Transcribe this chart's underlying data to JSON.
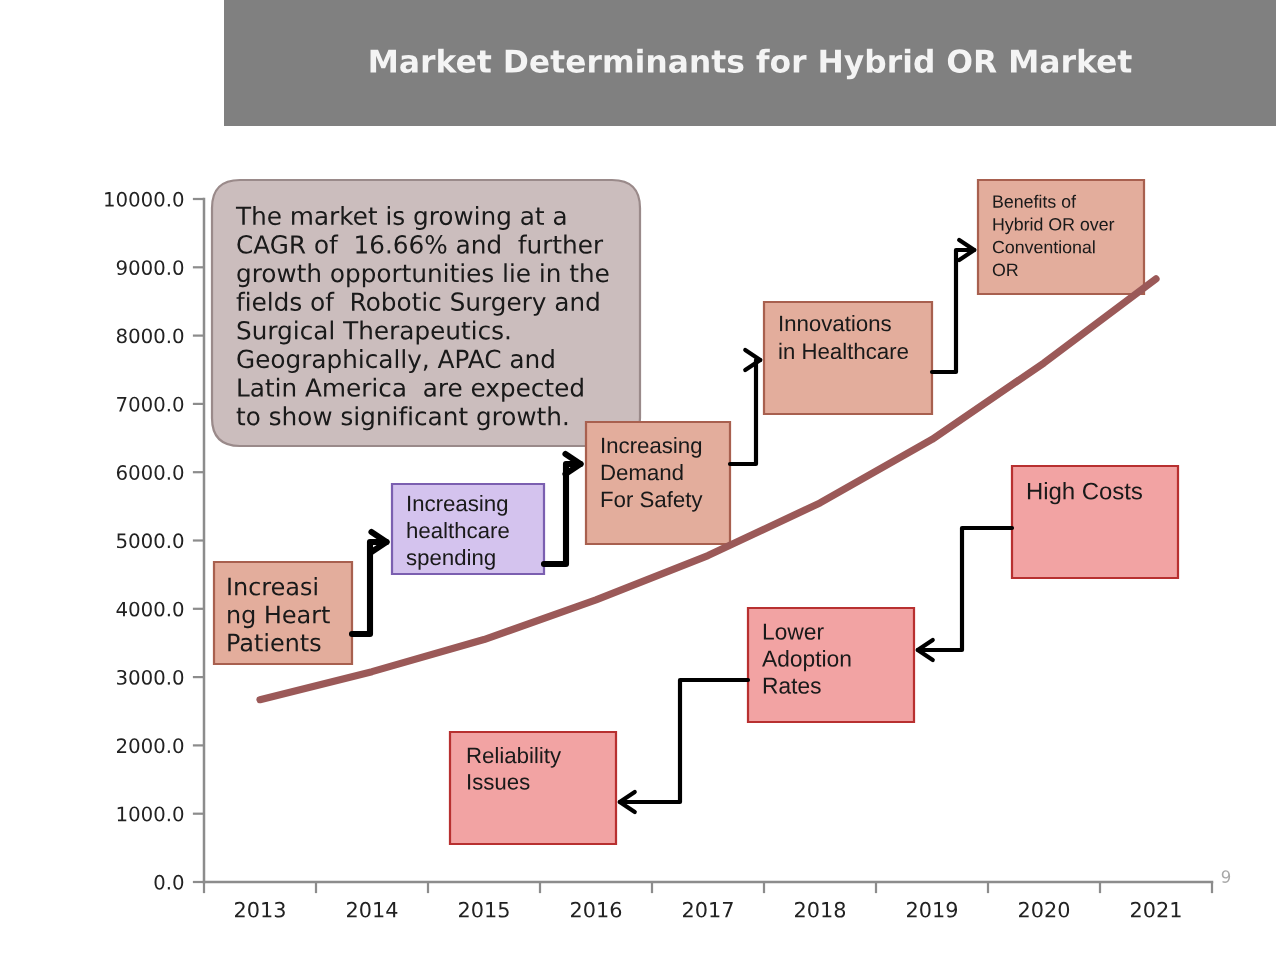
{
  "chart_data": {
    "type": "line",
    "title": "Market Determinants for Hybrid OR Market",
    "categories": [
      "2013",
      "2014",
      "2015",
      "2016",
      "2017",
      "2018",
      "2019",
      "2020",
      "2021"
    ],
    "values": [
      2670,
      3080,
      3550,
      4130,
      4780,
      5550,
      6480,
      7600,
      8830
    ],
    "color": "#9b5958",
    "line_style": "solid",
    "ylim": [
      0,
      10000
    ],
    "yticks": [
      {
        "value": 0,
        "label": "0.0"
      },
      {
        "value": 1000,
        "label": "1000.0"
      },
      {
        "value": 2000,
        "label": "2000.0"
      },
      {
        "value": 3000,
        "label": "3000.0"
      },
      {
        "value": 4000,
        "label": "4000.0"
      },
      {
        "value": 5000,
        "label": "5000.0"
      },
      {
        "value": 6000,
        "label": "6000.0"
      },
      {
        "value": 7000,
        "label": "7000.0"
      },
      {
        "value": 8000,
        "label": "8000.0"
      },
      {
        "value": 9000,
        "label": "9000.0"
      },
      {
        "value": 10000,
        "label": "10000.0"
      }
    ],
    "annotations": [
      "The market is growing at a\nCAGR of  16.66% and  further\ngrowth opportunities lie in the\nfields of  Robotic Surgery and\nSurgical Therapeutics.\nGeographically, APAC and\nLatin America  are expected\nto show significant growth.",
      "Increasi\nng Heart\nPatients",
      "Increasing\nhealthcare\nspending",
      "Increasing\nDemand\nFor Safety",
      "Innovations\nin Healthcare",
      "Benefits of\nHybrid OR over\nConventional\nOR",
      "High Costs",
      "Lower\nAdoption\nRates",
      "Reliability\nIssues",
      "9"
    ]
  }
}
